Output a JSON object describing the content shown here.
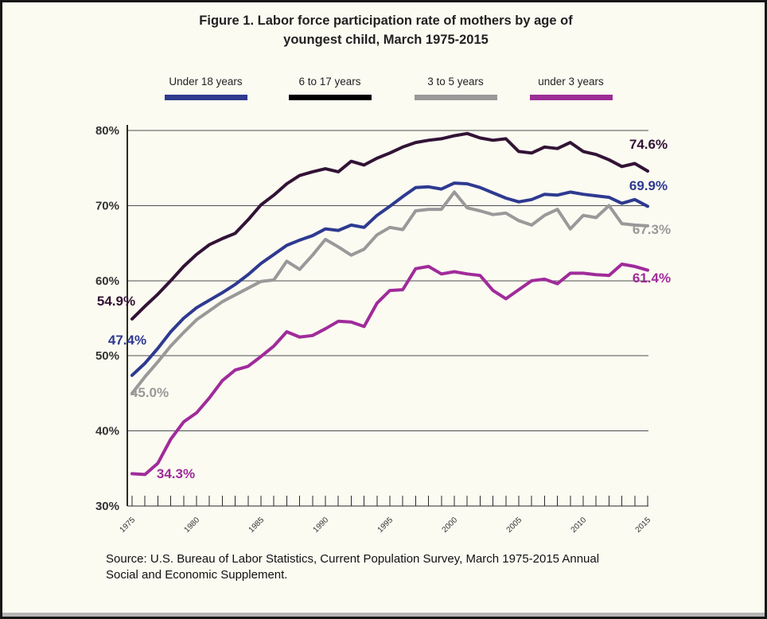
{
  "title": {
    "line1": "Figure 1. Labor force participation rate of mothers by age of",
    "line2": "youngest child, March 1975-2015"
  },
  "source": {
    "line1": "Source: U.S. Bureau of Labor Statistics, Current Population Survey, March 1975-2015 Annual",
    "line2": "Social and Economic Supplement."
  },
  "colors": {
    "background": "#fbfbf2",
    "grid": "#4f4f4f",
    "axis": "#2a2a2a",
    "tick_text": "#333333",
    "title_text": "#231f20"
  },
  "chart_data": {
    "type": "line",
    "title": "Figure 1. Labor force participation rate of mothers by age of youngest child, March 1975-2015",
    "xlabel": "",
    "ylabel": "",
    "ylim": [
      30,
      80
    ],
    "grid": true,
    "legend_position": "top",
    "x": [
      1975,
      1976,
      1977,
      1978,
      1979,
      1980,
      1981,
      1982,
      1983,
      1984,
      1985,
      1986,
      1987,
      1988,
      1989,
      1990,
      1991,
      1992,
      1993,
      1994,
      1995,
      1996,
      1997,
      1998,
      1999,
      2000,
      2001,
      2002,
      2003,
      2004,
      2005,
      2006,
      2007,
      2008,
      2009,
      2010,
      2011,
      2012,
      2013,
      2014,
      2015
    ],
    "x_tick_labels": [
      "1975",
      "1980",
      "1985",
      "1990",
      "1995",
      "2000",
      "2005",
      "2010",
      "2015"
    ],
    "y_ticks": [
      {
        "value": 80,
        "label": "80%"
      },
      {
        "value": 70,
        "label": "70%"
      },
      {
        "value": 60,
        "label": "60%"
      },
      {
        "value": 50,
        "label": "50%"
      },
      {
        "value": 40,
        "label": "40%"
      },
      {
        "value": 30,
        "label": "30%"
      }
    ],
    "series": [
      {
        "name": "Under 18 years",
        "line_color": "#2e3a90",
        "swatch_color": "#2e3a8e",
        "start_label": "47.4%",
        "end_label": "69.9%",
        "values": [
          47.4,
          49.0,
          51.0,
          53.2,
          55.0,
          56.4,
          57.4,
          58.4,
          59.5,
          60.8,
          62.3,
          63.5,
          64.7,
          65.4,
          66.0,
          66.9,
          66.7,
          67.4,
          67.1,
          68.7,
          69.9,
          71.2,
          72.4,
          72.5,
          72.2,
          73.0,
          72.9,
          72.4,
          71.7,
          71.0,
          70.5,
          70.8,
          71.5,
          71.4,
          71.8,
          71.5,
          71.3,
          71.1,
          70.3,
          70.8,
          69.9
        ]
      },
      {
        "name": "6 to 17 years",
        "line_color": "#321335",
        "swatch_color": "#000000",
        "start_label": "54.9%",
        "end_label": "74.6%",
        "values": [
          54.9,
          56.6,
          58.2,
          60.0,
          61.9,
          63.5,
          64.8,
          65.6,
          66.3,
          68.1,
          70.1,
          71.4,
          72.9,
          74.0,
          74.5,
          74.9,
          74.5,
          75.9,
          75.4,
          76.3,
          77.0,
          77.8,
          78.4,
          78.7,
          78.9,
          79.3,
          79.6,
          79.0,
          78.7,
          78.9,
          77.2,
          77.0,
          77.8,
          77.6,
          78.4,
          77.2,
          76.8,
          76.1,
          75.2,
          75.6,
          74.6
        ]
      },
      {
        "name": "3 to 5 years",
        "line_color": "#999999",
        "swatch_color": "#999999",
        "start_label": "45.0%",
        "end_label": "67.3%",
        "values": [
          45.0,
          47.2,
          49.2,
          51.3,
          53.1,
          54.8,
          56.0,
          57.2,
          58.1,
          59.0,
          59.9,
          60.1,
          62.6,
          61.5,
          63.4,
          65.5,
          64.5,
          63.4,
          64.2,
          66.1,
          67.1,
          66.8,
          69.3,
          69.5,
          69.5,
          71.8,
          69.7,
          69.3,
          68.8,
          69.0,
          68.0,
          67.4,
          68.7,
          69.5,
          66.9,
          68.7,
          68.4,
          70.0,
          67.6,
          67.4,
          67.3
        ]
      },
      {
        "name": "under 3 years",
        "line_color": "#a02b9a",
        "swatch_color": "#9c2d96",
        "start_label": "34.3%",
        "end_label": "61.4%",
        "values": [
          34.3,
          34.2,
          35.7,
          38.9,
          41.2,
          42.4,
          44.4,
          46.7,
          48.1,
          48.6,
          49.9,
          51.3,
          53.2,
          52.5,
          52.7,
          53.6,
          54.6,
          54.5,
          53.9,
          57.0,
          58.7,
          58.8,
          61.6,
          61.9,
          60.9,
          61.2,
          60.9,
          60.7,
          58.7,
          57.6,
          58.8,
          60.0,
          60.2,
          59.6,
          61.0,
          61.0,
          60.8,
          60.7,
          62.2,
          61.9,
          61.4
        ]
      }
    ]
  }
}
